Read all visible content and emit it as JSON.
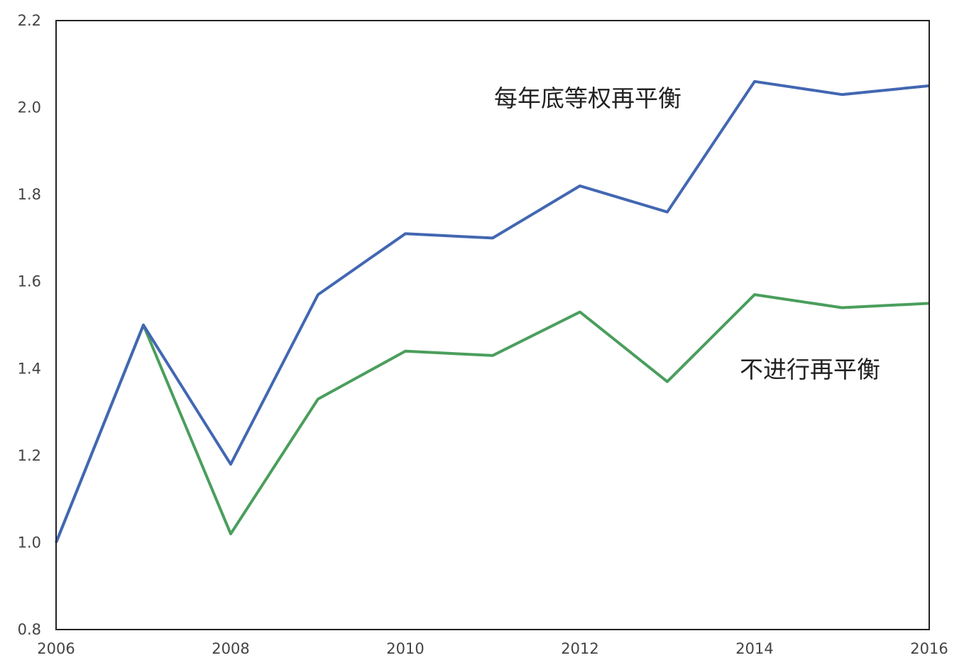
{
  "chart_data": {
    "type": "line",
    "title": "",
    "xlabel": "",
    "ylabel": "",
    "x": [
      2006,
      2007,
      2008,
      2009,
      2010,
      2011,
      2012,
      2013,
      2014,
      2015,
      2016
    ],
    "xlim": [
      2006,
      2016
    ],
    "ylim": [
      0.8,
      2.2
    ],
    "xticks": [
      "2006",
      "2008",
      "2010",
      "2012",
      "2014",
      "2016"
    ],
    "xtick_values": [
      2006,
      2008,
      2010,
      2012,
      2014,
      2016
    ],
    "yticks": [
      "0.8",
      "1.0",
      "1.2",
      "1.4",
      "1.6",
      "1.8",
      "2.0",
      "2.2"
    ],
    "ytick_values": [
      0.8,
      1.0,
      1.2,
      1.4,
      1.6,
      1.8,
      2.0,
      2.2
    ],
    "grid": false,
    "legend": "none (series labelled directly on plot)",
    "series": [
      {
        "name": "每年底等权再平衡",
        "color": "#4267b2",
        "values": [
          1.0,
          1.5,
          1.18,
          1.57,
          1.71,
          1.7,
          1.82,
          1.76,
          2.06,
          2.03,
          2.05
        ]
      },
      {
        "name": "不进行再平衡",
        "color": "#4a9e5c",
        "values": [
          1.0,
          1.5,
          1.02,
          1.33,
          1.44,
          1.43,
          1.53,
          1.37,
          1.57,
          1.54,
          1.55
        ]
      }
    ]
  }
}
